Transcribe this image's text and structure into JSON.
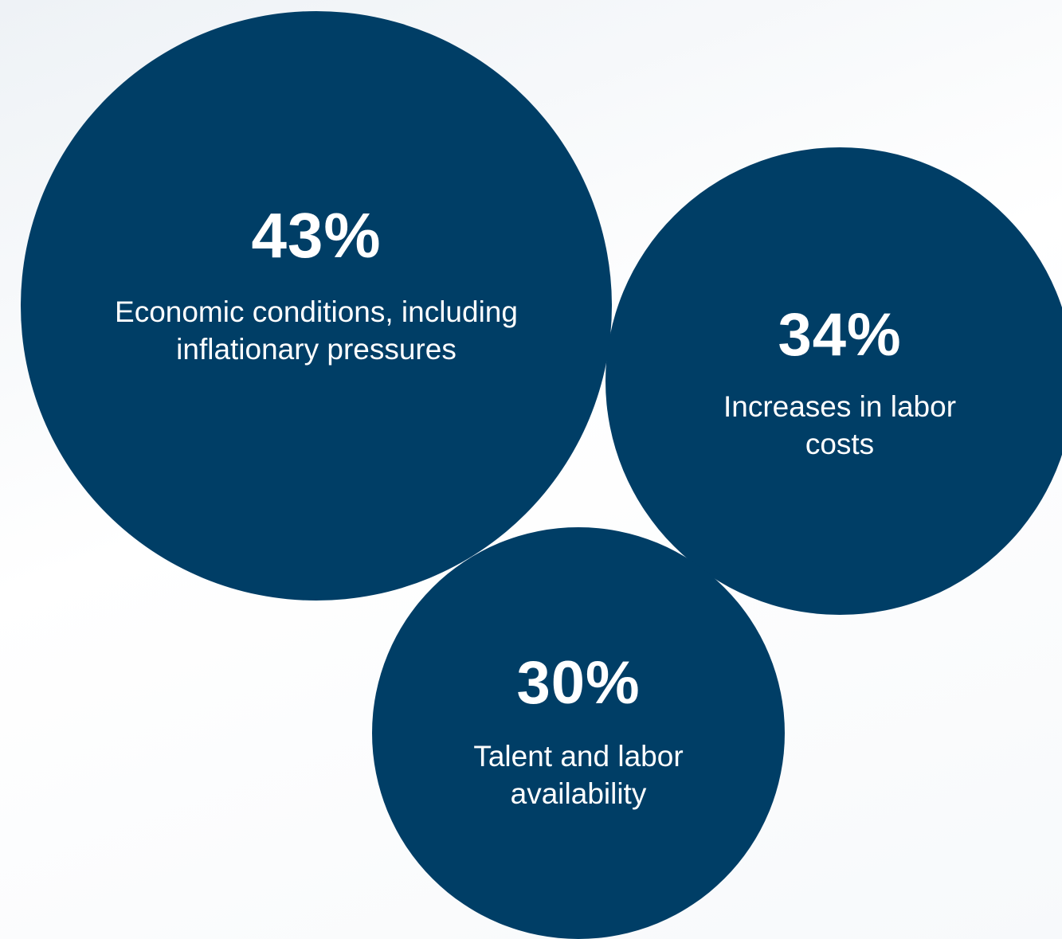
{
  "chart_data": {
    "type": "bubble",
    "color": "#003e66",
    "items": [
      {
        "value": "43%",
        "label": "Economic conditions, including inflationary pressures",
        "percent": 43
      },
      {
        "value": "34%",
        "label": "Increases in labor costs",
        "percent": 34
      },
      {
        "value": "30%",
        "label": "Talent and labor availability",
        "percent": 30
      }
    ]
  }
}
